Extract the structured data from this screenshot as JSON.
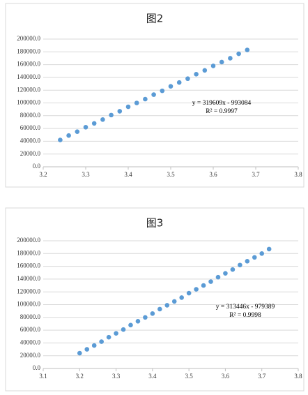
{
  "chart_data": [
    {
      "type": "scatter",
      "title": "图2",
      "x": [
        3.24,
        3.26,
        3.28,
        3.3,
        3.32,
        3.34,
        3.36,
        3.38,
        3.4,
        3.42,
        3.44,
        3.46,
        3.48,
        3.5,
        3.52,
        3.54,
        3.56,
        3.58,
        3.6,
        3.62,
        3.64,
        3.66,
        3.68
      ],
      "values": [
        42000,
        49000,
        55000,
        62000,
        68000,
        74000,
        81000,
        87000,
        94000,
        100000,
        106000,
        113000,
        119000,
        126000,
        132000,
        138000,
        145000,
        151000,
        158000,
        164000,
        170000,
        177000,
        183000
      ],
      "color": "#5b9bd5",
      "xlim": [
        3.2,
        3.8
      ],
      "xticks": [
        3.2,
        3.3,
        3.4,
        3.5,
        3.6,
        3.7,
        3.8
      ],
      "ylim": [
        0,
        200000
      ],
      "yticks": [
        {
          "value": 0,
          "label": "0.0"
        },
        {
          "value": 20000,
          "label": "20000.0"
        },
        {
          "value": 40000,
          "label": "40000.0"
        },
        {
          "value": 60000,
          "label": "60000.0"
        },
        {
          "value": 80000,
          "label": "80000.0"
        },
        {
          "value": 100000,
          "label": "100000.0"
        },
        {
          "value": 120000,
          "label": "120000.0"
        },
        {
          "value": 140000,
          "label": "140000.0"
        },
        {
          "value": 160000,
          "label": "160000.0"
        },
        {
          "value": 180000,
          "label": "180000.0"
        },
        {
          "value": 200000,
          "label": "200000.0"
        }
      ],
      "grid": true,
      "annotations": [
        "y = 319609x - 993084",
        "R² = 0.9997"
      ]
    },
    {
      "type": "scatter",
      "title": "图3",
      "x": [
        3.2,
        3.22,
        3.24,
        3.26,
        3.28,
        3.3,
        3.32,
        3.34,
        3.36,
        3.38,
        3.4,
        3.42,
        3.44,
        3.46,
        3.48,
        3.5,
        3.52,
        3.54,
        3.56,
        3.58,
        3.6,
        3.62,
        3.64,
        3.66,
        3.68,
        3.7,
        3.72
      ],
      "values": [
        24000,
        30000,
        36000,
        42000,
        49000,
        55000,
        61000,
        68000,
        74000,
        80000,
        86000,
        93000,
        99000,
        105000,
        111000,
        118000,
        124000,
        130000,
        136000,
        143000,
        149000,
        155000,
        162000,
        168000,
        174000,
        180000,
        187000
      ],
      "color": "#5b9bd5",
      "xlim": [
        3.1,
        3.8
      ],
      "xticks": [
        3.1,
        3.2,
        3.3,
        3.4,
        3.5,
        3.6,
        3.7,
        3.8
      ],
      "ylim": [
        0,
        200000
      ],
      "yticks": [
        {
          "value": 0,
          "label": "0.0"
        },
        {
          "value": 20000,
          "label": "20000.0"
        },
        {
          "value": 40000,
          "label": "40000.0"
        },
        {
          "value": 60000,
          "label": "60000.0"
        },
        {
          "value": 80000,
          "label": "80000.0"
        },
        {
          "value": 100000,
          "label": "100000.0"
        },
        {
          "value": 120000,
          "label": "120000.0"
        },
        {
          "value": 140000,
          "label": "140000.0"
        },
        {
          "value": 160000,
          "label": "160000.0"
        },
        {
          "value": 180000,
          "label": "180000.0"
        },
        {
          "value": 200000,
          "label": "200000.0"
        }
      ],
      "grid": true,
      "annotations": [
        "y = 313446x - 979389",
        "R² = 0.9998"
      ]
    }
  ]
}
